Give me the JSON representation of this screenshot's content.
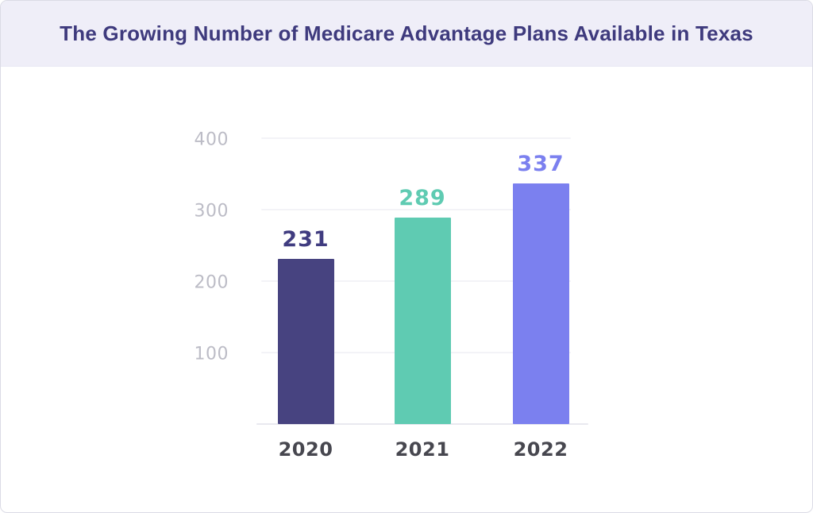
{
  "header": {
    "title": "The Growing Number of Medicare Advantage Plans Available in Texas"
  },
  "chart_data": {
    "type": "bar",
    "title": "The Growing Number of Medicare Advantage Plans Available in Texas",
    "categories": [
      "2020",
      "2021",
      "2022"
    ],
    "values": [
      231,
      289,
      337
    ],
    "bar_colors": [
      "#474380",
      "#5fcbb2",
      "#7b80ef"
    ],
    "value_label_colors": [
      "#403c80",
      "#5fcbb2",
      "#7b80ef"
    ],
    "xlabel": "",
    "ylabel": "",
    "ylim": [
      0,
      400
    ],
    "yticks": [
      100,
      200,
      300,
      400
    ],
    "grid": true,
    "legend": false
  },
  "colors": {
    "header_bg": "#efeef8",
    "title_text": "#3e3a7d",
    "y_tick_text": "#bcbcc6",
    "x_tick_text": "#47474f",
    "gridline": "#f3f3f7",
    "baseline": "#e9e9ef",
    "card_border": "#dbdbe5",
    "card_bg": "#ffffff"
  }
}
